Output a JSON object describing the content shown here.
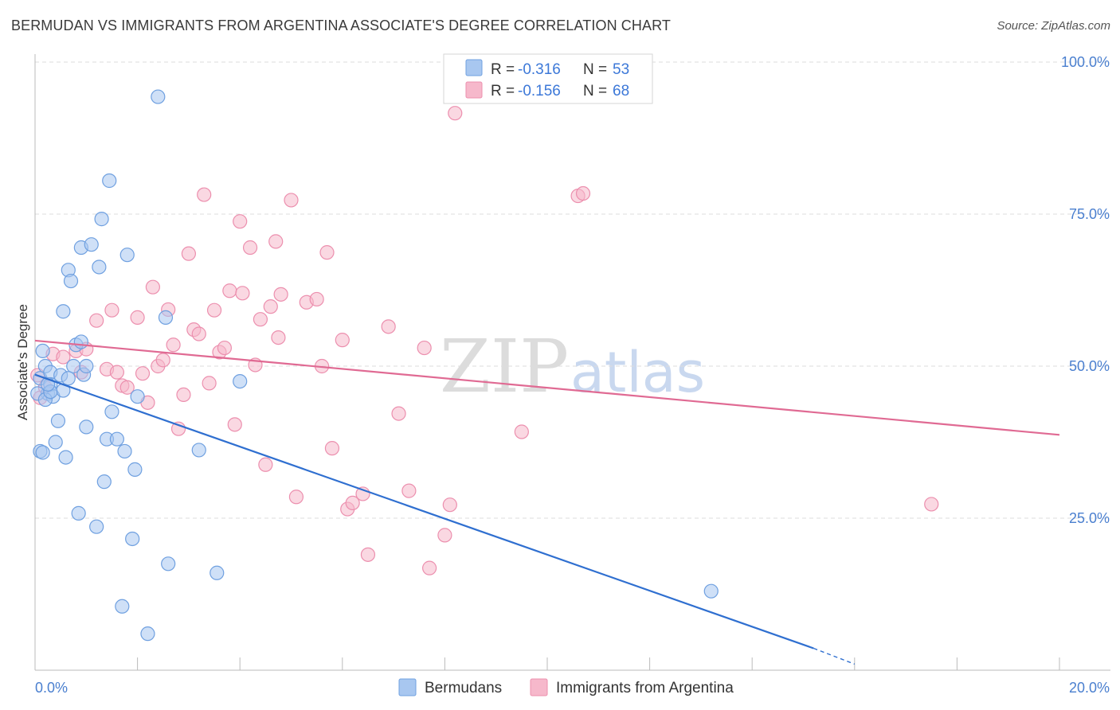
{
  "header": {
    "title": "BERMUDAN VS IMMIGRANTS FROM ARGENTINA ASSOCIATE'S DEGREE CORRELATION CHART",
    "source": "Source: ZipAtlas.com"
  },
  "watermark": {
    "zip": "ZIP",
    "atlas": "atlas"
  },
  "legend": {
    "rows": [
      {
        "r_label": "R = ",
        "r_value": "-0.316",
        "n_label": "N = ",
        "n_value": "53",
        "color": "#a8c7f0"
      },
      {
        "r_label": "R = ",
        "r_value": "-0.156",
        "n_label": "N = ",
        "n_value": "68",
        "color": "#f6b8cb"
      }
    ]
  },
  "bottom_legend": [
    "Bermudans",
    "Immigrants from Argentina"
  ],
  "chart_data": {
    "type": "scatter",
    "title": "BERMUDAN VS IMMIGRANTS FROM ARGENTINA ASSOCIATE'S DEGREE CORRELATION CHART",
    "ylabel": "Associate's Degree",
    "xlim": [
      0,
      20
    ],
    "ylim": [
      0,
      105
    ],
    "y_ticks": [
      25,
      50,
      75,
      100
    ],
    "y_tick_labels": [
      "25.0%",
      "50.0%",
      "75.0%",
      "100.0%"
    ],
    "x_tick_labels": [
      "0.0%",
      "20.0%"
    ],
    "grid": true,
    "legend_position": "top-center",
    "series": [
      {
        "name": "Bermudans",
        "color": "#6fa0e0",
        "fill": "#a8c7f0",
        "line_color": "#2f6fd0",
        "trend": {
          "x": [
            0,
            15.2
          ],
          "y": [
            48.6,
            3.6
          ],
          "dashed_to": [
            16,
            1.0
          ]
        },
        "points": [
          [
            0.1,
            48
          ],
          [
            0.15,
            52.5
          ],
          [
            0.2,
            50
          ],
          [
            0.25,
            45.5
          ],
          [
            0.3,
            49
          ],
          [
            0.3,
            47
          ],
          [
            0.35,
            45
          ],
          [
            0.4,
            37.5
          ],
          [
            0.45,
            41
          ],
          [
            0.5,
            48.5
          ],
          [
            0.55,
            46
          ],
          [
            0.6,
            35
          ],
          [
            0.65,
            65.8
          ],
          [
            0.7,
            64
          ],
          [
            0.75,
            50
          ],
          [
            0.8,
            53.5
          ],
          [
            0.85,
            25.8
          ],
          [
            0.9,
            69.5
          ],
          [
            0.95,
            48.6
          ],
          [
            1.0,
            40
          ],
          [
            1.0,
            50
          ],
          [
            1.1,
            70
          ],
          [
            1.2,
            23.6
          ],
          [
            1.25,
            66.3
          ],
          [
            1.3,
            74.2
          ],
          [
            1.35,
            31
          ],
          [
            1.4,
            38
          ],
          [
            1.45,
            80.5
          ],
          [
            1.5,
            42.5
          ],
          [
            1.6,
            38
          ],
          [
            1.7,
            10.5
          ],
          [
            1.75,
            36
          ],
          [
            1.8,
            68.3
          ],
          [
            1.9,
            21.6
          ],
          [
            1.95,
            33
          ],
          [
            2.0,
            45
          ],
          [
            2.2,
            6
          ],
          [
            2.4,
            94.3
          ],
          [
            2.55,
            58
          ],
          [
            2.6,
            17.5
          ],
          [
            3.2,
            36.2
          ],
          [
            3.55,
            16
          ],
          [
            4.0,
            47.5
          ],
          [
            0.05,
            45.5
          ],
          [
            0.1,
            36
          ],
          [
            0.2,
            44.5
          ],
          [
            0.3,
            45.8
          ],
          [
            0.55,
            59
          ],
          [
            0.65,
            48
          ],
          [
            0.25,
            47
          ],
          [
            13.2,
            13
          ],
          [
            0.15,
            35.8
          ],
          [
            0.9,
            54
          ]
        ]
      },
      {
        "name": "Immigrants from Argentina",
        "color": "#ec8fae",
        "fill": "#f6b8cb",
        "line_color": "#e06a93",
        "trend": {
          "x": [
            0,
            20
          ],
          "y": [
            54.2,
            38.7
          ]
        },
        "points": [
          [
            0.05,
            48.5
          ],
          [
            0.1,
            44.8
          ],
          [
            0.2,
            46.5
          ],
          [
            0.35,
            52
          ],
          [
            0.55,
            51.5
          ],
          [
            0.8,
            52.5
          ],
          [
            0.9,
            49
          ],
          [
            1.0,
            52.8
          ],
          [
            1.2,
            57.5
          ],
          [
            1.4,
            49.5
          ],
          [
            1.5,
            59.2
          ],
          [
            1.6,
            49
          ],
          [
            1.7,
            46.8
          ],
          [
            1.8,
            46.5
          ],
          [
            2.0,
            58
          ],
          [
            2.1,
            48.8
          ],
          [
            2.2,
            44
          ],
          [
            2.3,
            63
          ],
          [
            2.4,
            50
          ],
          [
            2.5,
            51
          ],
          [
            2.6,
            59.3
          ],
          [
            2.7,
            53.5
          ],
          [
            2.8,
            39.7
          ],
          [
            2.9,
            45.3
          ],
          [
            3.0,
            68.5
          ],
          [
            3.1,
            56
          ],
          [
            3.2,
            55.3
          ],
          [
            3.3,
            78.2
          ],
          [
            3.4,
            47.2
          ],
          [
            3.5,
            59.2
          ],
          [
            3.6,
            52.3
          ],
          [
            3.7,
            53
          ],
          [
            3.8,
            62.4
          ],
          [
            3.9,
            40.4
          ],
          [
            4.0,
            73.8
          ],
          [
            4.05,
            62
          ],
          [
            4.2,
            69.5
          ],
          [
            4.3,
            50.2
          ],
          [
            4.4,
            57.7
          ],
          [
            4.5,
            33.8
          ],
          [
            4.6,
            59.8
          ],
          [
            4.7,
            70.5
          ],
          [
            4.75,
            54.7
          ],
          [
            4.8,
            61.8
          ],
          [
            5.0,
            77.3
          ],
          [
            5.1,
            28.5
          ],
          [
            5.3,
            60.5
          ],
          [
            5.5,
            61
          ],
          [
            5.6,
            50
          ],
          [
            5.7,
            68.7
          ],
          [
            5.8,
            36.5
          ],
          [
            6.0,
            54.3
          ],
          [
            6.1,
            26.5
          ],
          [
            6.2,
            27.5
          ],
          [
            6.4,
            29
          ],
          [
            6.5,
            19
          ],
          [
            6.9,
            56.5
          ],
          [
            7.1,
            42.2
          ],
          [
            7.3,
            29.5
          ],
          [
            7.6,
            53
          ],
          [
            7.7,
            16.8
          ],
          [
            8.0,
            22.2
          ],
          [
            8.1,
            27.2
          ],
          [
            8.2,
            91.6
          ],
          [
            9.5,
            39.2
          ],
          [
            10.6,
            78
          ],
          [
            10.7,
            78.4
          ],
          [
            17.5,
            27.3
          ]
        ]
      }
    ]
  }
}
